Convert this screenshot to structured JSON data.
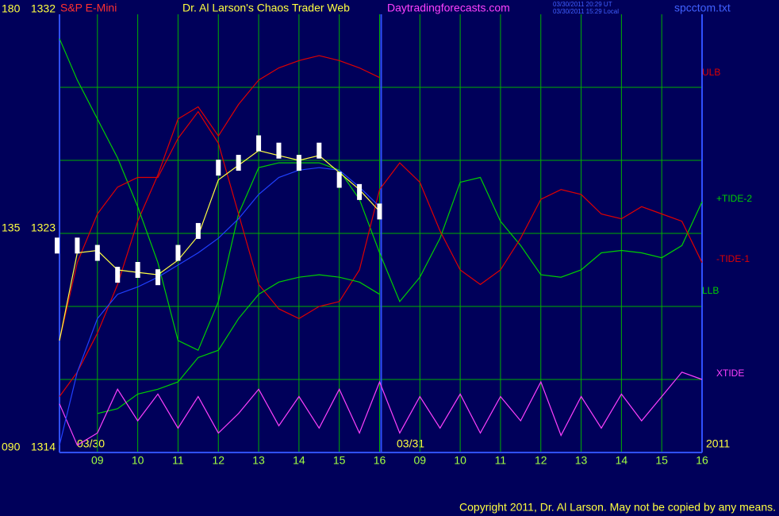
{
  "chart_data": {
    "type": "line",
    "instrument": "S&P E-Mini",
    "title": "Dr. Al Larson's Chaos Trader Web",
    "site": "Daytradingforecasts.com",
    "timestamps": [
      "03/30/2011 20:29 UT",
      "03/30/2011 15:29 Local"
    ],
    "file": "spcctom.txt",
    "copyright": "Copyright 2011, Dr. Al Larson. May not be copied by any means.",
    "date_labels": [
      "03/30",
      "03/31",
      "2011"
    ],
    "categories": [
      null,
      null,
      "09",
      null,
      "10",
      null,
      "11",
      null,
      "12",
      null,
      "13",
      null,
      "14",
      null,
      "15",
      null,
      "16",
      null,
      "09",
      null,
      "10",
      null,
      "11",
      null,
      "12",
      null,
      "13",
      null,
      "14",
      null,
      "15",
      null,
      "16"
    ],
    "ylim": [
      1314,
      1332
    ],
    "yticks": [
      1314,
      1323,
      1332
    ],
    "ygrid": [
      1317,
      1320,
      1323,
      1326,
      1329
    ],
    "y2lim": [
      90,
      180
    ],
    "y2ticks": [
      {
        "value": 90,
        "label": "090"
      },
      135,
      180
    ],
    "grid": true,
    "series": [
      {
        "name": "ULB",
        "color": "#e00000",
        "values": [
          1316.3,
          1317.3,
          1318.9,
          1320.9,
          1323.5,
          1325.4,
          1327.7,
          1328.2,
          1327.0,
          1328.3,
          1329.3,
          1329.8,
          1330.1,
          1330.3,
          1330.1,
          1329.8,
          1329.4,
          null,
          null,
          null,
          null,
          null,
          null,
          null,
          null,
          null,
          null,
          null,
          null,
          null,
          null,
          null,
          null
        ]
      },
      {
        "name": "+TIDE-2",
        "color": "#00d000",
        "values": [
          1331.0,
          1329.3,
          1327.7,
          1326.1,
          1324.1,
          1321.8,
          1318.6,
          1318.2,
          1320.2,
          1323.8,
          1325.7,
          1325.9,
          1325.9,
          1325.9,
          1325.6,
          1324.4,
          1322.2,
          1320.2,
          1321.2,
          1322.8,
          1325.1,
          1325.3,
          1323.5,
          1322.5,
          1321.3,
          1321.2,
          1321.5,
          1322.2,
          1322.3,
          1322.2,
          1322.0,
          1322.5,
          1324.3
        ]
      },
      {
        "name": "-TIDE-1",
        "color": "#e00000",
        "values": [
          1318.6,
          1321.8,
          1323.8,
          1324.9,
          1325.3,
          1325.3,
          1326.9,
          1328.0,
          1326.7,
          1323.8,
          1320.9,
          1319.9,
          1319.5,
          1320.0,
          1320.2,
          1321.5,
          1324.8,
          1325.9,
          1325.1,
          1323.1,
          1321.5,
          1320.9,
          1321.5,
          1322.8,
          1324.4,
          1324.8,
          1324.6,
          1323.8,
          1323.6,
          1324.1,
          1323.8,
          1323.5,
          1321.8
        ]
      },
      {
        "name": "LLB",
        "color": "#00d000",
        "values": [
          null,
          null,
          1315.6,
          1315.8,
          1316.4,
          1316.6,
          1316.9,
          1317.9,
          1318.2,
          1319.5,
          1320.5,
          1321.0,
          1321.2,
          1321.3,
          1321.2,
          1321.0,
          1320.5,
          null,
          null,
          null,
          null,
          null,
          null,
          null,
          null,
          null,
          null,
          null,
          null,
          null,
          null,
          null,
          null
        ]
      },
      {
        "name": "XTIDE",
        "color": "#ff40ff",
        "values": [
          1316.0,
          1314.3,
          1314.8,
          1316.6,
          1315.3,
          1316.4,
          1315.0,
          1316.3,
          1314.8,
          1315.6,
          1316.6,
          1315.1,
          1316.3,
          1315.0,
          1316.6,
          1314.8,
          1316.9,
          1314.8,
          1316.3,
          1315.0,
          1316.4,
          1314.8,
          1316.3,
          1315.3,
          1316.9,
          1314.7,
          1316.3,
          1315.0,
          1316.4,
          1315.3,
          1316.3,
          1317.3,
          1317.0
        ]
      },
      {
        "color": "#2040ff",
        "values": [
          1314.3,
          1317.3,
          1319.5,
          1320.5,
          1320.8,
          1321.2,
          1321.7,
          1322.2,
          1322.8,
          1323.6,
          1324.6,
          1325.3,
          1325.6,
          1325.7,
          1325.6,
          1324.9,
          1324.1,
          null,
          null,
          null,
          null,
          null,
          null,
          null,
          null,
          null,
          null,
          null,
          null,
          null,
          null,
          null,
          null
        ]
      },
      {
        "color": "#ffff40",
        "values": [
          1318.6,
          1322.2,
          1322.3,
          1321.5,
          1321.4,
          1321.3,
          1321.9,
          1322.9,
          1325.2,
          1325.8,
          1326.4,
          1326.2,
          1326.0,
          1326.2,
          1325.5,
          1324.8,
          1323.9,
          null,
          null,
          null,
          null,
          null,
          null,
          null,
          null,
          null,
          null,
          null,
          null,
          null,
          null,
          null,
          null
        ]
      },
      {
        "kind": "bars",
        "color": "#ffffff",
        "values": [
          1322.5,
          1322.5,
          1322.2,
          1321.3,
          1321.5,
          1321.2,
          1322.2,
          1323.1,
          1325.7,
          1325.9,
          1326.7,
          1326.4,
          1325.9,
          1326.4,
          1325.2,
          1324.7,
          1323.9,
          null,
          null,
          null,
          null,
          null,
          null,
          null,
          null,
          null,
          null,
          null,
          null,
          null,
          null,
          null,
          null
        ]
      }
    ]
  }
}
